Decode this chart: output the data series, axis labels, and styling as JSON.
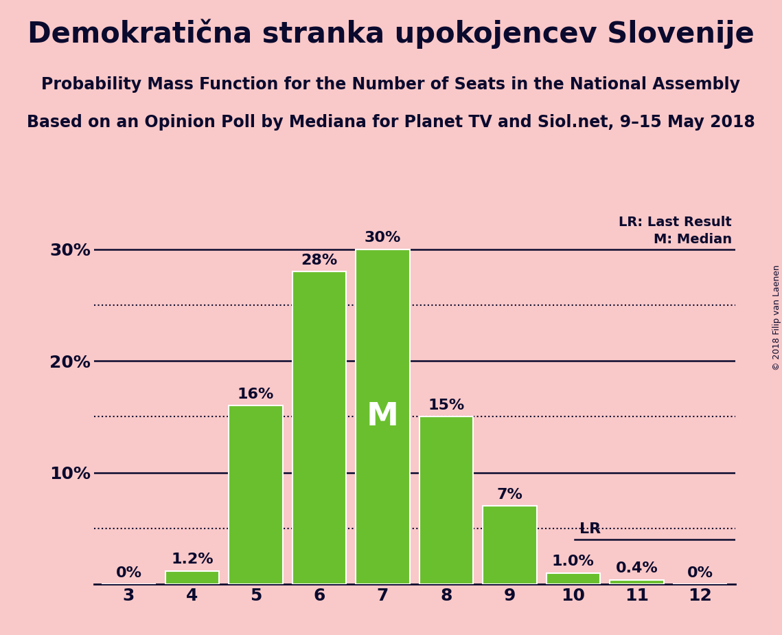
{
  "title": "Demokratična stranka upokojencev Slovenije",
  "subtitle1": "Probability Mass Function for the Number of Seats in the National Assembly",
  "subtitle2": "Based on an Opinion Poll by Mediana for Planet TV and Siol.net, 9–15 May 2018",
  "copyright": "© 2018 Filip van Laenen",
  "seats": [
    3,
    4,
    5,
    6,
    7,
    8,
    9,
    10,
    11,
    12
  ],
  "values": [
    0.0,
    1.2,
    16.0,
    28.0,
    30.0,
    15.0,
    7.0,
    1.0,
    0.4,
    0.0
  ],
  "bar_color": "#6abf2e",
  "bar_edge_color": "#ffffff",
  "background_color": "#f9c8c8",
  "text_color": "#0a0a2e",
  "median_seat": 7,
  "lr_seat": 10,
  "lr_value": 4.0,
  "lr_label": "LR",
  "median_label": "M",
  "legend_lr": "LR: Last Result",
  "legend_m": "M: Median",
  "ylim": [
    0,
    33
  ],
  "yticks": [
    10,
    20,
    30
  ],
  "ytick_labels": [
    "10%",
    "20%",
    "30%"
  ],
  "dotted_yticks": [
    5,
    15,
    25
  ],
  "solid_yticks": [
    10,
    20,
    30
  ],
  "bar_labels": [
    "0%",
    "1.2%",
    "16%",
    "28%",
    "30%",
    "15%",
    "7%",
    "1.0%",
    "0.4%",
    "0%"
  ],
  "text_color_dark": "#0a0a2e",
  "title_fontsize": 30,
  "subtitle_fontsize": 17,
  "label_fontsize": 16,
  "tick_fontsize": 18,
  "median_fontsize": 34,
  "legend_fontsize": 14,
  "copyright_fontsize": 9
}
